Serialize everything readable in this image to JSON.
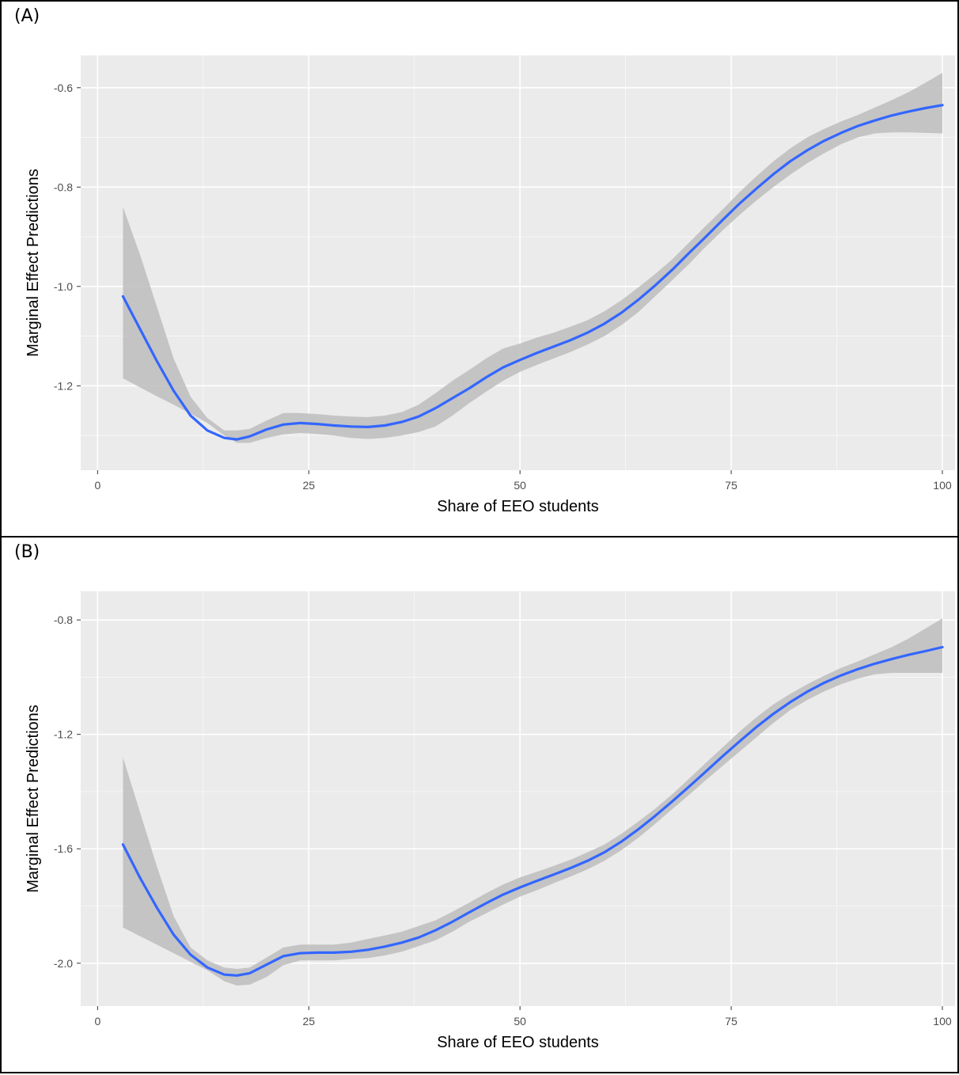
{
  "chart_data": [
    {
      "type": "line",
      "panel_label": "(A)",
      "xlabel": "Share of EEO students",
      "ylabel": "Marginal Effect Predictions",
      "xlim": [
        -2,
        101.5
      ],
      "ylim": [
        -1.37,
        -0.535
      ],
      "x_ticks": [
        0,
        25,
        50,
        75,
        100
      ],
      "x_tick_labels": [
        "0",
        "25",
        "50",
        "75",
        "100"
      ],
      "y_ticks": [
        -1.2,
        -1.0,
        -0.8,
        -0.6
      ],
      "y_tick_labels": [
        "-1.2",
        "-1.0",
        "-0.8",
        "-0.6"
      ],
      "grid": true,
      "colors": {
        "panel_bg": "#ebebeb",
        "grid": "#ffffff",
        "line": "#3366ff",
        "band": "#bdbdbd"
      },
      "series": [
        {
          "x": [
            3,
            5,
            7,
            9,
            11,
            13,
            15,
            16.5,
            18,
            20,
            22,
            24,
            26,
            28,
            30,
            32,
            34,
            36,
            38,
            40,
            42,
            44,
            46,
            48,
            50,
            52,
            54,
            56,
            58,
            60,
            62,
            64,
            66,
            68,
            70,
            72,
            74,
            76,
            78,
            80,
            82,
            84,
            86,
            88,
            90,
            92,
            94,
            96,
            98,
            100
          ],
          "y": [
            -1.02,
            -1.085,
            -1.15,
            -1.21,
            -1.26,
            -1.29,
            -1.305,
            -1.308,
            -1.302,
            -1.288,
            -1.278,
            -1.275,
            -1.277,
            -1.28,
            -1.282,
            -1.283,
            -1.28,
            -1.273,
            -1.262,
            -1.245,
            -1.225,
            -1.205,
            -1.183,
            -1.163,
            -1.148,
            -1.134,
            -1.121,
            -1.108,
            -1.093,
            -1.075,
            -1.053,
            -1.027,
            -0.998,
            -0.967,
            -0.933,
            -0.9,
            -0.866,
            -0.833,
            -0.803,
            -0.774,
            -0.748,
            -0.726,
            -0.707,
            -0.691,
            -0.677,
            -0.666,
            -0.656,
            -0.648,
            -0.641,
            -0.635
          ],
          "lower": [
            -1.185,
            -1.203,
            -1.221,
            -1.238,
            -1.256,
            -1.275,
            -1.3,
            -1.315,
            -1.315,
            -1.305,
            -1.298,
            -1.295,
            -1.297,
            -1.3,
            -1.305,
            -1.307,
            -1.305,
            -1.3,
            -1.293,
            -1.282,
            -1.26,
            -1.235,
            -1.212,
            -1.19,
            -1.172,
            -1.158,
            -1.145,
            -1.132,
            -1.117,
            -1.1,
            -1.078,
            -1.052,
            -1.02,
            -0.988,
            -0.955,
            -0.92,
            -0.887,
            -0.856,
            -0.827,
            -0.8,
            -0.775,
            -0.752,
            -0.732,
            -0.714,
            -0.7,
            -0.692,
            -0.69,
            -0.69,
            -0.691,
            -0.692
          ],
          "upper": [
            -0.84,
            -0.935,
            -1.04,
            -1.145,
            -1.222,
            -1.265,
            -1.29,
            -1.29,
            -1.287,
            -1.27,
            -1.255,
            -1.255,
            -1.257,
            -1.26,
            -1.262,
            -1.263,
            -1.26,
            -1.253,
            -1.238,
            -1.215,
            -1.19,
            -1.168,
            -1.145,
            -1.125,
            -1.115,
            -1.103,
            -1.093,
            -1.081,
            -1.068,
            -1.05,
            -1.028,
            -1.002,
            -0.975,
            -0.946,
            -0.912,
            -0.878,
            -0.845,
            -0.81,
            -0.778,
            -0.748,
            -0.722,
            -0.7,
            -0.683,
            -0.668,
            -0.655,
            -0.64,
            -0.625,
            -0.609,
            -0.59,
            -0.57
          ]
        }
      ]
    },
    {
      "type": "line",
      "panel_label": "(B)",
      "xlabel": "Share of EEO students",
      "ylabel": "Marginal Effect Predictions",
      "xlim": [
        -2,
        101.5
      ],
      "ylim": [
        -2.15,
        -0.7
      ],
      "x_ticks": [
        0,
        25,
        50,
        75,
        100
      ],
      "x_tick_labels": [
        "0",
        "25",
        "50",
        "75",
        "100"
      ],
      "y_ticks": [
        -2.0,
        -1.6,
        -1.2,
        -0.8
      ],
      "y_tick_labels": [
        "-2.0",
        "-1.6",
        "-1.2",
        "-0.8"
      ],
      "grid": true,
      "colors": {
        "panel_bg": "#ebebeb",
        "grid": "#ffffff",
        "line": "#3366ff",
        "band": "#bdbdbd"
      },
      "series": [
        {
          "x": [
            3,
            5,
            7,
            9,
            11,
            13,
            15,
            16.5,
            18,
            20,
            22,
            24,
            26,
            28,
            30,
            32,
            34,
            36,
            38,
            40,
            42,
            44,
            46,
            48,
            50,
            52,
            54,
            56,
            58,
            60,
            62,
            64,
            66,
            68,
            70,
            72,
            74,
            76,
            78,
            80,
            82,
            84,
            86,
            88,
            90,
            92,
            94,
            96,
            98,
            100
          ],
          "y": [
            -1.585,
            -1.7,
            -1.805,
            -1.9,
            -1.97,
            -2.015,
            -2.04,
            -2.043,
            -2.035,
            -2.005,
            -1.975,
            -1.965,
            -1.963,
            -1.963,
            -1.96,
            -1.953,
            -1.942,
            -1.928,
            -1.91,
            -1.885,
            -1.855,
            -1.822,
            -1.79,
            -1.76,
            -1.735,
            -1.712,
            -1.69,
            -1.667,
            -1.642,
            -1.612,
            -1.575,
            -1.532,
            -1.485,
            -1.435,
            -1.383,
            -1.33,
            -1.276,
            -1.224,
            -1.174,
            -1.128,
            -1.087,
            -1.051,
            -1.02,
            -0.994,
            -0.972,
            -0.953,
            -0.937,
            -0.922,
            -0.909,
            -0.895
          ],
          "lower": [
            -1.875,
            -1.905,
            -1.935,
            -1.965,
            -1.995,
            -2.025,
            -2.063,
            -2.078,
            -2.075,
            -2.048,
            -2.007,
            -1.99,
            -1.99,
            -1.99,
            -1.985,
            -1.982,
            -1.973,
            -1.96,
            -1.94,
            -1.92,
            -1.89,
            -1.855,
            -1.825,
            -1.795,
            -1.767,
            -1.745,
            -1.72,
            -1.697,
            -1.672,
            -1.642,
            -1.605,
            -1.562,
            -1.513,
            -1.462,
            -1.412,
            -1.36,
            -1.31,
            -1.26,
            -1.21,
            -1.16,
            -1.115,
            -1.08,
            -1.05,
            -1.025,
            -1.005,
            -0.99,
            -0.985,
            -0.985,
            -0.985,
            -0.985
          ],
          "upper": [
            -1.28,
            -1.47,
            -1.66,
            -1.835,
            -1.945,
            -1.99,
            -2.015,
            -2.02,
            -2.015,
            -1.98,
            -1.945,
            -1.935,
            -1.935,
            -1.935,
            -1.928,
            -1.915,
            -1.903,
            -1.89,
            -1.87,
            -1.85,
            -1.82,
            -1.788,
            -1.755,
            -1.725,
            -1.7,
            -1.68,
            -1.66,
            -1.638,
            -1.612,
            -1.585,
            -1.548,
            -1.505,
            -1.46,
            -1.41,
            -1.355,
            -1.3,
            -1.245,
            -1.19,
            -1.14,
            -1.095,
            -1.058,
            -1.025,
            -0.995,
            -0.968,
            -0.945,
            -0.92,
            -0.895,
            -0.865,
            -0.83,
            -0.795
          ]
        }
      ]
    }
  ]
}
